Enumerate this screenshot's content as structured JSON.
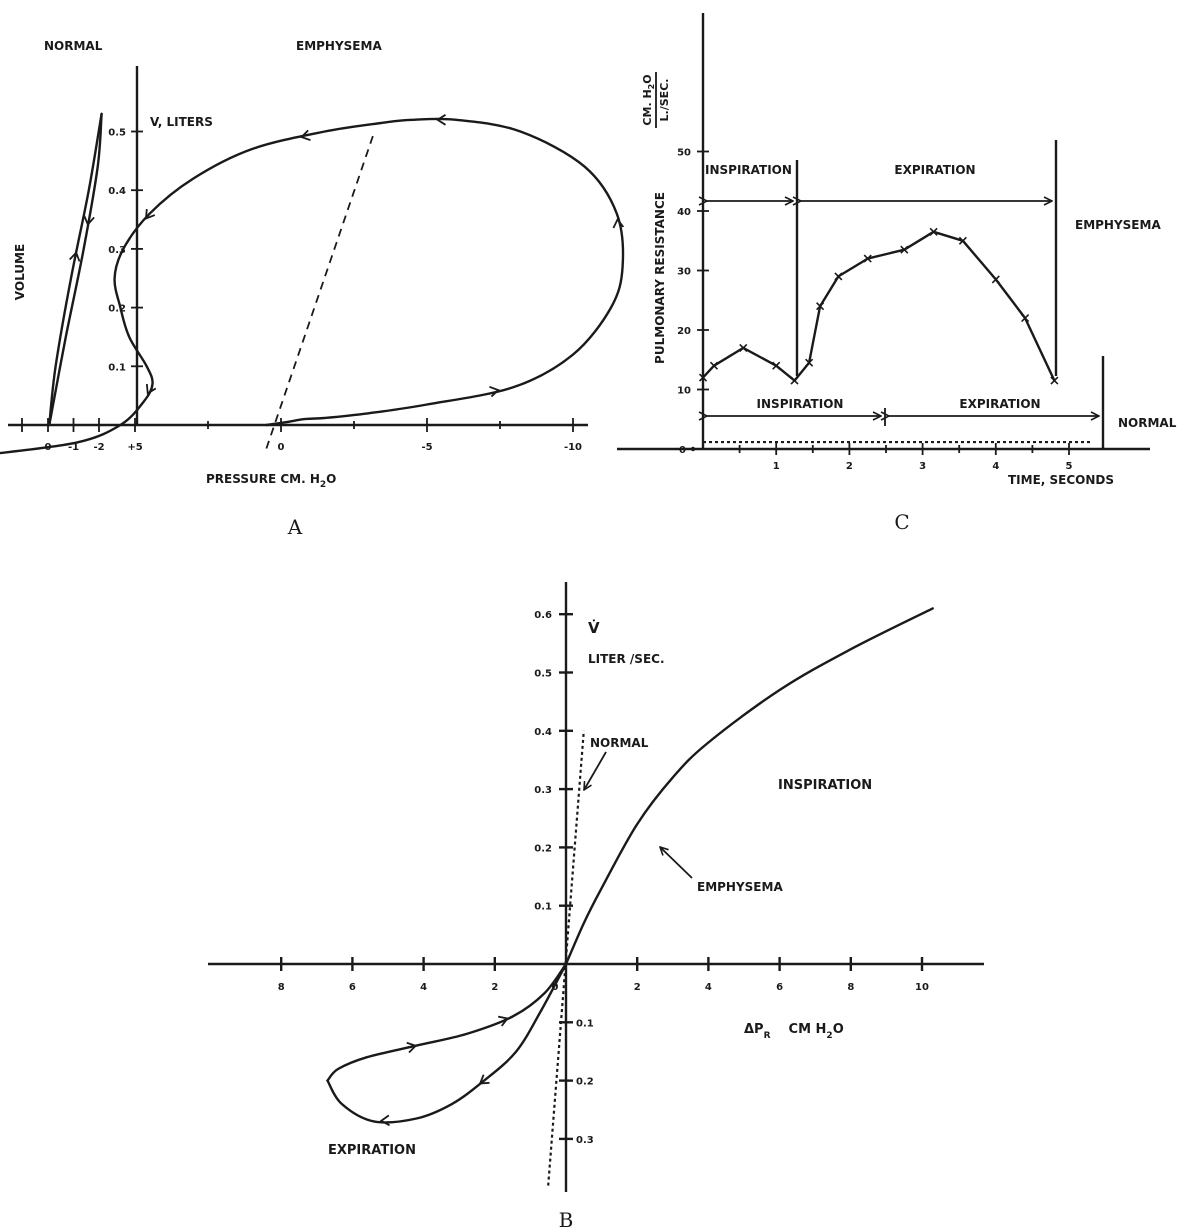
{
  "panel_labels": {
    "a": "A",
    "b": "B",
    "c": "C"
  },
  "chart_data": [
    {
      "panel": "A",
      "type": "line",
      "labels": {
        "normal": "NORMAL",
        "emphysema": "EMPHYSEMA",
        "volume": "VOLUME",
        "y_unit": "V, LITERS",
        "pressure": "PRESSURE CM. H",
        "pressure_sub": "2",
        "pressure_end": "O"
      },
      "x_ticks_normal": [
        "0",
        "-1",
        "-2"
      ],
      "x_ticks": [
        "+5",
        "0",
        "-5",
        "-10"
      ],
      "y_ticks": [
        "0.1",
        "0.2",
        "0.3",
        "0.4",
        "0.5"
      ],
      "x_unit": "cm H2O (reversed)",
      "y_unit": "liters",
      "series": [
        {
          "key": "emphysema_loop",
          "x": [
            0.5,
            -0.2,
            -0.8,
            -1.5,
            -3,
            -5,
            -8,
            -10,
            -11.3,
            -11.7,
            -11.5,
            -10.4,
            -8.2,
            -6,
            -4.5,
            -3.5,
            -1.5,
            1,
            3,
            4.5,
            5.4,
            5.7,
            5.5,
            5.2,
            4.6,
            4.4,
            4.7,
            5.5,
            7,
            10
          ],
          "y": [
            0,
            0.005,
            0.01,
            0.012,
            0.02,
            0.035,
            0.065,
            0.12,
            0.2,
            0.27,
            0.36,
            0.44,
            0.5,
            0.52,
            0.52,
            0.515,
            0.5,
            0.47,
            0.42,
            0.36,
            0.3,
            0.25,
            0.2,
            0.15,
            0.1,
            0.07,
            0.04,
            0.0,
            -0.03,
            -0.05
          ]
        },
        {
          "key": "emphysema_dashed",
          "x": [
            0.5,
            -3.2
          ],
          "y": [
            -0.04,
            0.5
          ]
        },
        {
          "key": "normal_upper",
          "x": [
            -0.05,
            -0.3,
            -0.9,
            -1.6,
            -2.1
          ],
          "y": [
            0,
            0.1,
            0.25,
            0.4,
            0.53
          ]
        },
        {
          "key": "normal_lower",
          "x": [
            -2.1,
            -1.95,
            -1.4,
            -0.7,
            -0.05
          ],
          "y": [
            0.53,
            0.44,
            0.3,
            0.15,
            0
          ]
        }
      ]
    },
    {
      "panel": "B",
      "type": "line",
      "labels": {
        "flow": "V̇",
        "flow_unit": "LITER /SEC.",
        "pressure": "ΔP",
        "pressure_sub": "R",
        "pressure_unit": "CM H",
        "pressure_unit_sub": "2",
        "pressure_unit_end": "O",
        "normal": "NORMAL",
        "emphysema": "EMPHYSEMA",
        "inspiration": "INSPIRATION",
        "expiration": "EXPIRATION"
      },
      "x_ticks_left": [
        "8",
        "6",
        "4",
        "2",
        "0"
      ],
      "x_ticks_right": [
        "2",
        "4",
        "6",
        "8",
        "10"
      ],
      "y_ticks_pos": [
        "0.1",
        "0.2",
        "0.3",
        "0.4",
        "0.5",
        "0.6"
      ],
      "y_ticks_neg": [
        "0.1",
        "0.2",
        "0.3"
      ],
      "series": [
        {
          "key": "emphysema_inspiration",
          "x": [
            0,
            0.5,
            1,
            2,
            3,
            4,
            6,
            8,
            10.3
          ],
          "y": [
            0,
            0.07,
            0.13,
            0.24,
            0.32,
            0.38,
            0.47,
            0.54,
            0.61
          ]
        },
        {
          "key": "emphysema_expiration_upper",
          "x": [
            0,
            -0.6,
            -1.5,
            -2.8,
            -4.2,
            -5.6,
            -6.4,
            -6.7
          ],
          "y": [
            0,
            -0.05,
            -0.09,
            -0.12,
            -0.14,
            -0.16,
            -0.18,
            -0.2
          ]
        },
        {
          "key": "emphysema_expiration_lower",
          "x": [
            -6.7,
            -6.3,
            -5.4,
            -4.2,
            -3.2,
            -2.3,
            -1.4,
            -0.7,
            0
          ],
          "y": [
            -0.2,
            -0.24,
            -0.27,
            -0.265,
            -0.24,
            -0.2,
            -0.15,
            -0.08,
            0
          ]
        },
        {
          "key": "normal_line",
          "x": [
            -0.5,
            0.5
          ],
          "y": [
            -0.38,
            0.4
          ]
        }
      ]
    },
    {
      "panel": "C",
      "type": "line",
      "labels": {
        "y_label": "PULMONARY RESISTANCE",
        "y_unit_top": "CM. H",
        "y_unit_sub": "2",
        "y_unit_end": "O",
        "y_unit_bottom": "L./SEC.",
        "inspiration_em": "INSPIRATION",
        "expiration_em": "EXPIRATION",
        "emphysema": "EMPHYSEMA",
        "inspiration_n": "INSPIRATION",
        "expiration_n": "EXPIRATION",
        "normal": "NORMAL",
        "x_label": "TIME, SECONDS"
      },
      "y_ticks": [
        "10",
        "20",
        "30",
        "40",
        "50"
      ],
      "x_ticks": [
        "1",
        "2",
        "3",
        "4",
        "5"
      ],
      "x_unit": "seconds",
      "y_unit": "cm H2O per L/sec",
      "y_zero": "0",
      "series": [
        {
          "key": "emphysema",
          "x": [
            0,
            0.15,
            0.55,
            1.0,
            1.25,
            1.45,
            1.6,
            1.85,
            2.25,
            2.75,
            3.15,
            3.55,
            4.0,
            4.4,
            4.8
          ],
          "y": [
            12,
            14,
            17,
            14,
            11.5,
            14.5,
            24,
            29,
            32,
            33.5,
            36.5,
            35,
            28.5,
            22,
            11.5
          ]
        },
        {
          "key": "normal",
          "x": [
            0,
            5.3
          ],
          "y": [
            1,
            1
          ]
        }
      ],
      "phases_emphysema": {
        "inspiration": [
          0,
          1.25
        ],
        "expiration": [
          1.25,
          4.8
        ]
      },
      "phases_normal": {
        "inspiration": [
          0,
          2.45
        ],
        "expiration": [
          2.45,
          5.45
        ]
      }
    }
  ]
}
